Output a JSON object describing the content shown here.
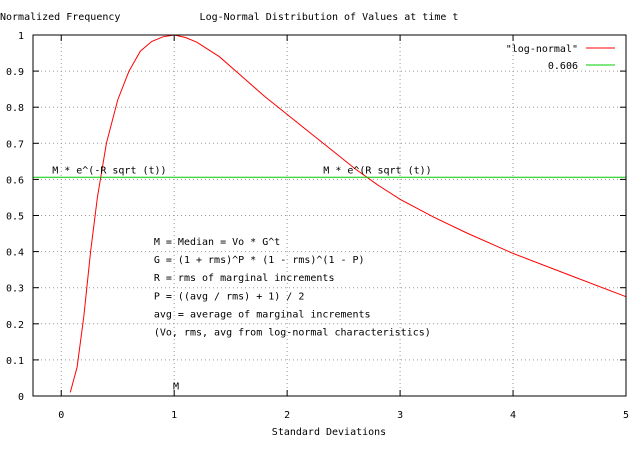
{
  "chart_data": {
    "type": "line",
    "title": "Log-Normal Distribution of Values at time t",
    "ylabel": "Normalized Frequency",
    "xlabel": "Standard Deviations",
    "xlim": [
      -0.25,
      5
    ],
    "ylim": [
      0,
      1
    ],
    "x_ticks": [
      0,
      1,
      2,
      3,
      4,
      5
    ],
    "y_ticks": [
      0,
      0.1,
      0.2,
      0.3,
      0.4,
      0.5,
      0.6,
      0.7,
      0.8,
      0.9,
      1
    ],
    "grid": true,
    "legend_position": "top-right",
    "series": [
      {
        "name": "\"log-normal\"",
        "color": "#ff0000",
        "x": [
          0.08,
          0.14,
          0.2,
          0.26,
          0.32,
          0.4,
          0.5,
          0.6,
          0.7,
          0.8,
          0.9,
          1.0,
          1.1,
          1.2,
          1.4,
          1.6,
          1.8,
          2.0,
          2.2,
          2.4,
          2.6,
          2.8,
          3.0,
          3.3,
          3.6,
          4.0,
          4.5,
          5.0
        ],
        "y": [
          0.01,
          0.08,
          0.22,
          0.4,
          0.55,
          0.7,
          0.82,
          0.9,
          0.955,
          0.982,
          0.995,
          1.0,
          0.993,
          0.98,
          0.94,
          0.885,
          0.83,
          0.78,
          0.73,
          0.68,
          0.63,
          0.585,
          0.545,
          0.495,
          0.45,
          0.395,
          0.335,
          0.275
        ]
      },
      {
        "name": "0.606",
        "color": "#00cc00",
        "x": [
          -0.25,
          5
        ],
        "y": [
          0.606,
          0.606
        ]
      }
    ],
    "annotations": [
      {
        "text": "M * e^(-R sqrt (t))",
        "x": -0.08,
        "y": 0.617
      },
      {
        "text": "M * e^(R sqrt (t))",
        "x": 2.32,
        "y": 0.617
      },
      {
        "text": "M = Median = Vo * G^t",
        "x": 0.82,
        "y": 0.418
      },
      {
        "text": "G = (1 + rms)^P * (1 - rms)^(1 - P)",
        "x": 0.82,
        "y": 0.368
      },
      {
        "text": "R = rms of marginal increments",
        "x": 0.82,
        "y": 0.318
      },
      {
        "text": "P = ((avg / rms) + 1) / 2",
        "x": 0.82,
        "y": 0.268
      },
      {
        "text": "avg = average of marginal increments",
        "x": 0.82,
        "y": 0.218
      },
      {
        "text": "(Vo, rms, avg from log-normal characteristics)",
        "x": 0.82,
        "y": 0.168
      },
      {
        "text": "M",
        "x": 0.99,
        "y": 0.018
      }
    ]
  }
}
